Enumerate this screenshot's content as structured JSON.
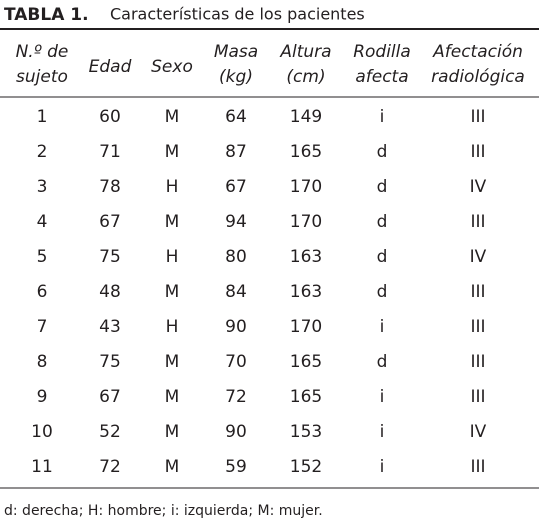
{
  "header": {
    "label": "TABLA 1.",
    "title": "Características de los pacientes"
  },
  "table": {
    "columns": [
      [
        "N.º de",
        "sujeto"
      ],
      [
        "Edad"
      ],
      [
        "Sexo"
      ],
      [
        "Masa",
        "(kg)"
      ],
      [
        "Altura",
        "(cm)"
      ],
      [
        "Rodilla",
        "afecta"
      ],
      [
        "Afectación",
        "radiológica"
      ]
    ],
    "rows": [
      [
        "1",
        "60",
        "M",
        "64",
        "149",
        "i",
        "III"
      ],
      [
        "2",
        "71",
        "M",
        "87",
        "165",
        "d",
        "III"
      ],
      [
        "3",
        "78",
        "H",
        "67",
        "170",
        "d",
        "IV"
      ],
      [
        "4",
        "67",
        "M",
        "94",
        "170",
        "d",
        "III"
      ],
      [
        "5",
        "75",
        "H",
        "80",
        "163",
        "d",
        "IV"
      ],
      [
        "6",
        "48",
        "M",
        "84",
        "163",
        "d",
        "III"
      ],
      [
        "7",
        "43",
        "H",
        "90",
        "170",
        "i",
        "III"
      ],
      [
        "8",
        "75",
        "M",
        "70",
        "165",
        "d",
        "III"
      ],
      [
        "9",
        "67",
        "M",
        "72",
        "165",
        "i",
        "III"
      ],
      [
        "10",
        "52",
        "M",
        "90",
        "153",
        "i",
        "IV"
      ],
      [
        "11",
        "72",
        "M",
        "59",
        "152",
        "i",
        "III"
      ]
    ]
  },
  "footnote": "d: derecha; H: hombre; i: izquierda; M: mujer."
}
